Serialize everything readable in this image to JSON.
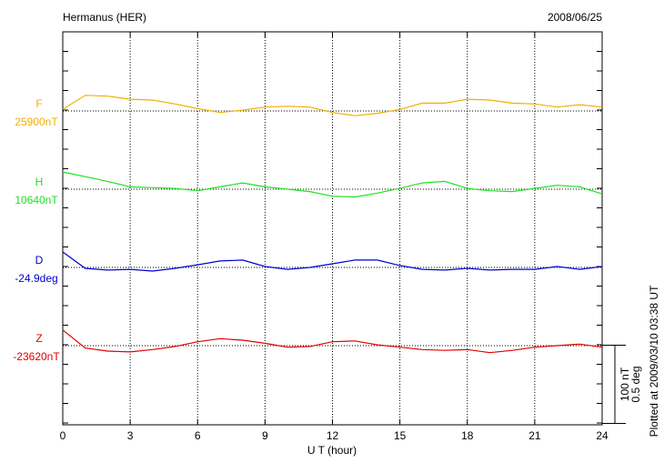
{
  "chart_data": {
    "type": "line",
    "title": "Hermanus (HER)",
    "date": "2008/06/25",
    "xlabel": "U T (hour)",
    "footnote": "Plotted at 2009/03/10 03:38 UT",
    "xlim": [
      0,
      24
    ],
    "xticks": [
      0,
      3,
      6,
      9,
      12,
      15,
      18,
      21,
      24
    ],
    "grid": true,
    "scale_bar": [
      {
        "value": 100,
        "label": "100 nT"
      },
      {
        "value": 0.5,
        "label": "0.5 deg"
      }
    ],
    "x": [
      0,
      1,
      2,
      3,
      4,
      5,
      6,
      7,
      8,
      9,
      10,
      11,
      12,
      13,
      14,
      15,
      16,
      17,
      18,
      19,
      20,
      21,
      22,
      23,
      24
    ],
    "series": [
      {
        "name": "F",
        "color": "#f0b000",
        "baseline": {
          "value": 25900,
          "label": "25900nT"
        },
        "values": [
          25902,
          25920,
          25919,
          25915,
          25914,
          25909,
          25903,
          25898,
          25901,
          25905,
          25906,
          25905,
          25898,
          25894,
          25897,
          25902,
          25910,
          25910,
          25915,
          25914,
          25910,
          25909,
          25905,
          25908,
          25905
        ]
      },
      {
        "name": "H",
        "color": "#20e020",
        "baseline": {
          "value": 10640,
          "label": "10640nT"
        },
        "values": [
          10662,
          10656,
          10650,
          10643,
          10642,
          10641,
          10638,
          10643,
          10648,
          10643,
          10640,
          10637,
          10631,
          10630,
          10635,
          10641,
          10648,
          10650,
          10641,
          10638,
          10637,
          10641,
          10645,
          10643,
          10634
        ]
      },
      {
        "name": "D",
        "color": "#0000d0",
        "baseline": {
          "value": -24.9,
          "label": "-24.9deg"
        },
        "values": [
          -24.801,
          -24.906,
          -24.917,
          -24.912,
          -24.923,
          -24.906,
          -24.883,
          -24.859,
          -24.853,
          -24.894,
          -24.912,
          -24.9,
          -24.877,
          -24.853,
          -24.853,
          -24.888,
          -24.912,
          -24.917,
          -24.906,
          -24.917,
          -24.912,
          -24.912,
          -24.894,
          -24.912,
          -24.894
        ]
      },
      {
        "name": "Z",
        "color": "#e00000",
        "baseline": {
          "value": -23620,
          "label": "-23620nT"
        },
        "values": [
          -23600,
          -23623,
          -23627,
          -23628,
          -23625,
          -23621,
          -23615,
          -23611,
          -23613,
          -23617,
          -23622,
          -23621,
          -23615,
          -23614,
          -23619,
          -23622,
          -23625,
          -23626,
          -23625,
          -23629,
          -23626,
          -23622,
          -23620,
          -23618,
          -23622
        ]
      }
    ]
  }
}
